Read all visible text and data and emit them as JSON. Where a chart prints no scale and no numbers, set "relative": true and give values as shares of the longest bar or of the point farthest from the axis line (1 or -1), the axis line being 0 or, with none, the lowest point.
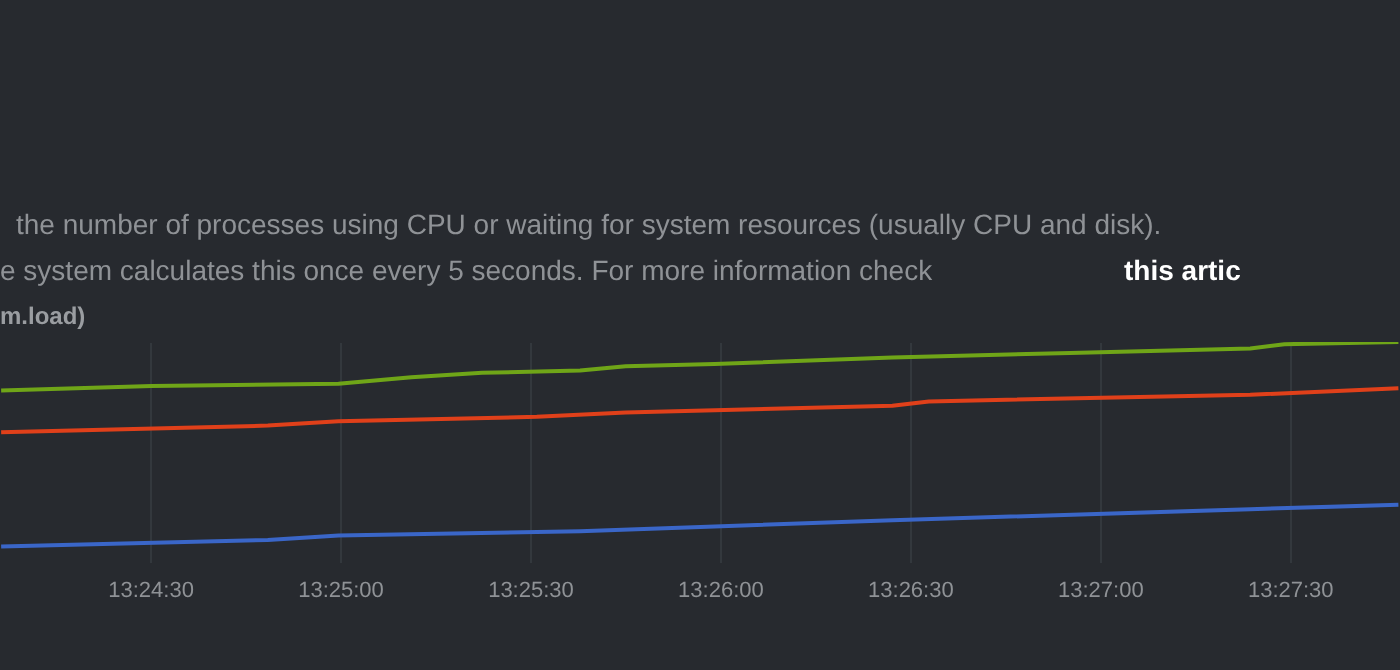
{
  "chart_data": {
    "type": "line",
    "relative": true,
    "grid": "x",
    "marker": "none",
    "line_style": "solid",
    "annotations": [
      "the number of processes using CPU or waiting for system resources (usually CPU and disk).",
      "e system calculates this once every 5 seconds. For more information check",
      "this artic",
      "m.load)"
    ],
    "xlim": [
      13.40175,
      13.46317
    ],
    "xticks": [
      {
        "value": 13.408333,
        "label": "13:24:30"
      },
      {
        "value": 13.416667,
        "label": "13:25:00"
      },
      {
        "value": 13.425,
        "label": "13:25:30"
      },
      {
        "value": 13.433333,
        "label": "13:26:00"
      },
      {
        "value": 13.441667,
        "label": "13:26:30"
      },
      {
        "value": 13.45,
        "label": "13:27:00"
      },
      {
        "value": 13.458333,
        "label": "13:27:30"
      }
    ],
    "series": [
      {
        "color": "#6fa518",
        "x": [
          13.4018,
          13.4084,
          13.4166,
          13.4198,
          13.4229,
          13.4272,
          13.4292,
          13.4331,
          13.4409,
          13.4487,
          13.4566,
          13.4581,
          13.4631
        ],
        "values": [
          0.78,
          0.8,
          0.81,
          0.84,
          0.86,
          0.87,
          0.89,
          0.9,
          0.93,
          0.95,
          0.97,
          0.99,
          1.0
        ]
      },
      {
        "color": "#e0401a",
        "x": [
          13.4018,
          13.4135,
          13.4166,
          13.4253,
          13.4292,
          13.4409,
          13.4425,
          13.4566,
          13.4631
        ],
        "values": [
          0.59,
          0.62,
          0.64,
          0.66,
          0.68,
          0.71,
          0.73,
          0.76,
          0.79
        ]
      },
      {
        "color": "#3a66c8",
        "x": [
          13.4018,
          13.4135,
          13.4166,
          13.4272,
          13.4409,
          13.4566,
          13.4631
        ],
        "values": [
          0.07,
          0.1,
          0.12,
          0.14,
          0.19,
          0.24,
          0.26
        ]
      }
    ]
  }
}
